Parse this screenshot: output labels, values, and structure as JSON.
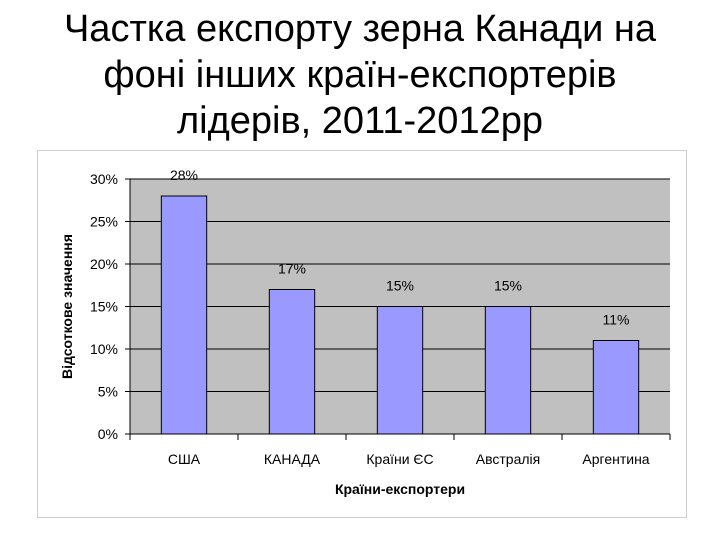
{
  "title": {
    "lines": [
      "Частка експорту зерна Канади на",
      "фоні інших країн-експортерів",
      "лідерів, 2011-2012рр"
    ]
  },
  "colors": {
    "plot_background": "#c0c0c0",
    "bar_fill": "#9999ff",
    "bar_stroke": "#000000",
    "gridline": "#000000"
  },
  "chart_data": {
    "type": "bar",
    "categories": [
      "США",
      "КАНАДА",
      "Країни ЄС",
      "Австралія",
      "Аргентина"
    ],
    "values": [
      0.28,
      0.17,
      0.15,
      0.15,
      0.11
    ],
    "data_labels": [
      "28%",
      "17%",
      "15%",
      "15%",
      "11%"
    ],
    "xlabel": "Країни-експортери",
    "ylabel": "Відсоткове значення",
    "ylim": [
      0,
      0.3
    ],
    "yticks": [
      0,
      0.05,
      0.1,
      0.15,
      0.2,
      0.25,
      0.3
    ],
    "ytick_labels": [
      "0%",
      "5%",
      "10%",
      "15%",
      "20%",
      "25%",
      "30%"
    ],
    "grid": true,
    "legend": "none"
  }
}
